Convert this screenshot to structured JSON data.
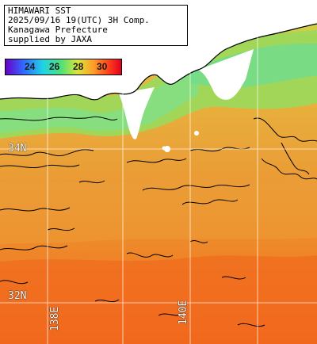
{
  "header": {
    "line1": "HIMAWARI SST",
    "line2": "2025/09/16 19(UTC) 3H Comp.",
    "line3": "Kanagawa Prefecture",
    "line4": "supplied by JAXA"
  },
  "legend": {
    "ticks": [
      "24",
      "26",
      "28",
      "30"
    ],
    "unit_hint": "",
    "colors": [
      "#6a00c8",
      "#2f6cff",
      "#1fd2e6",
      "#4ee07a",
      "#d8e63a",
      "#ff9d2a",
      "#ff3a1a",
      "#e0001e"
    ]
  },
  "grid": {
    "lat_labels": [
      "34N",
      "32N"
    ],
    "lon_labels": [
      "138E",
      "140E"
    ]
  },
  "colors": {
    "land": "#ffffff",
    "cool_sea": "#7de07a",
    "warm_sea": "#e8852a",
    "hot_sea": "#f26a1e",
    "grid_line": "#ffffff",
    "contour": "#000000"
  }
}
